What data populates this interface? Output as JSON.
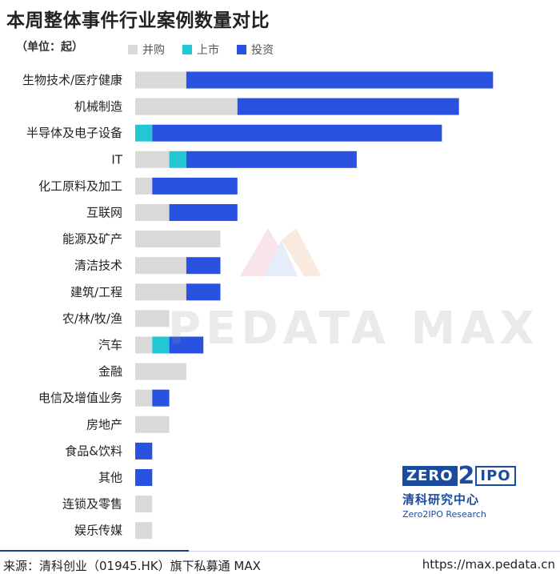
{
  "title": "本周整体事件行业案例数量对比",
  "unit_label": "（单位：起）",
  "colors": {
    "merger": "#d9d9d9",
    "ipo": "#22c7d4",
    "investment": "#2a52e0"
  },
  "legend": [
    {
      "name": "并购",
      "color": "#d9d9d9"
    },
    {
      "name": "上市",
      "color": "#22c7d4"
    },
    {
      "name": "投资",
      "color": "#2a52e0"
    }
  ],
  "chart_data": {
    "type": "bar",
    "orientation": "horizontal",
    "stacked": true,
    "categories": [
      "生物技术/医疗健康",
      "机械制造",
      "半导体及电子设备",
      "IT",
      "化工原料及加工",
      "互联网",
      "能源及矿产",
      "清洁技术",
      "建筑/工程",
      "农/林/牧/渔",
      "汽车",
      "金融",
      "电信及增值业务",
      "房地产",
      "食品&饮料",
      "其他",
      "连锁及零售",
      "娱乐传媒"
    ],
    "series": [
      {
        "name": "并购",
        "values": [
          3,
          6,
          0,
          2,
          1,
          2,
          5,
          3,
          3,
          2,
          1,
          3,
          1,
          2,
          0,
          0,
          1,
          1
        ]
      },
      {
        "name": "上市",
        "values": [
          0,
          0,
          1,
          1,
          0,
          0,
          0,
          0,
          0,
          0,
          1,
          0,
          0,
          0,
          0,
          0,
          0,
          0
        ]
      },
      {
        "name": "投资",
        "values": [
          18,
          13,
          17,
          10,
          5,
          4,
          0,
          2,
          2,
          0,
          2,
          0,
          1,
          0,
          1,
          1,
          0,
          0
        ]
      }
    ],
    "xlim": [
      0,
      21
    ],
    "grid": false,
    "legend_position": "top-left"
  },
  "watermark": "PEDATA MAX",
  "logo": {
    "zero": "ZERO",
    "two": "2",
    "ipo": "IPO",
    "cn": "清科研究中心",
    "en": "Zero2IPO Research"
  },
  "footer": {
    "source": "来源：清科创业（01945.HK）旗下私募通 MAX",
    "url": "https://max.pedata.cn"
  }
}
